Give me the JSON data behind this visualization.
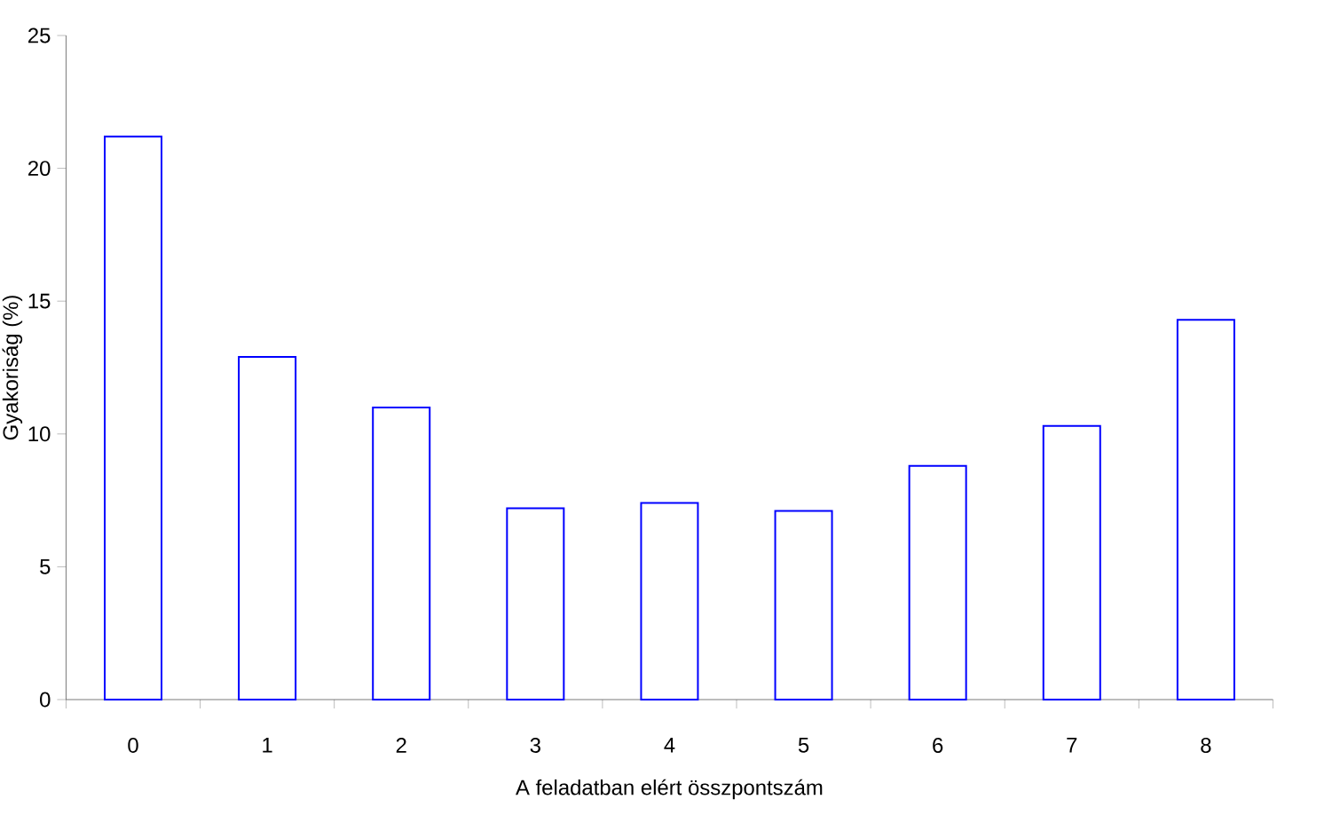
{
  "chart_data": {
    "type": "bar",
    "xlabel": "A feladatban elért összpontszám",
    "ylabel": "Gyakoriság (%)",
    "categories": [
      "0",
      "1",
      "2",
      "3",
      "4",
      "5",
      "6",
      "7",
      "8"
    ],
    "values": [
      21.2,
      12.9,
      11.0,
      7.2,
      7.4,
      7.1,
      8.8,
      10.3,
      14.3
    ],
    "color": "#0000ff",
    "ylim": [
      0,
      25
    ],
    "yticks": [
      0,
      5,
      10,
      15,
      20,
      25
    ],
    "grid": false
  }
}
